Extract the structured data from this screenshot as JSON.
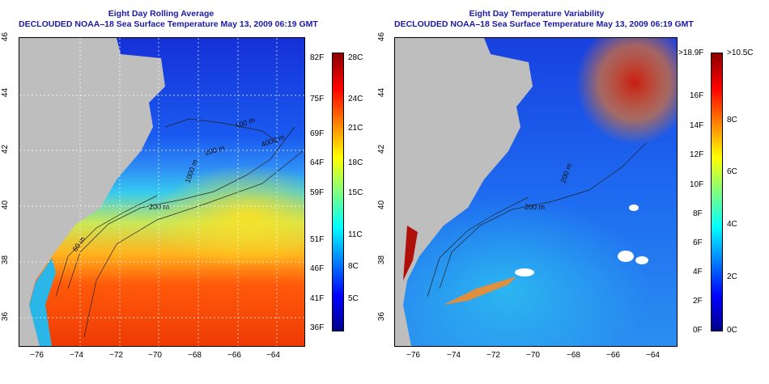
{
  "left_map": {
    "title_line1": "Eight Day Rolling Average",
    "title_line2": "DECLOUDED NOAA–18 Sea Surface Temperature May 13, 2009 06:19 GMT",
    "contour_labels": [
      "200 m",
      "60 m",
      "4000 m",
      "100 m",
      "200 m",
      "1000 m"
    ],
    "lat_ticks": [
      "46",
      "44",
      "42",
      "40",
      "38",
      "36"
    ],
    "lon_ticks": [
      "−76",
      "−74",
      "−72",
      "−70",
      "−68",
      "−66",
      "−64"
    ],
    "colorbar_f": [
      "82F",
      "75F",
      "69F",
      "64F",
      "59F",
      "51F",
      "46F",
      "41F",
      "36F"
    ],
    "colorbar_c": [
      "28C",
      "24C",
      "21C",
      "18C",
      "15C",
      "11C",
      "8C",
      "5C"
    ]
  },
  "right_map": {
    "title_line1": "Eight Day Temperature Variability",
    "title_line2": "DECLOUDED NOAA–18 Sea Surface Temperature May 13, 2009 06:19 GMT",
    "contour_labels": [
      "200 m",
      "200 m"
    ],
    "lat_ticks": [
      "46",
      "44",
      "42",
      "40",
      "38",
      "36"
    ],
    "lon_ticks": [
      "−76",
      "−74",
      "−72",
      "−70",
      "−68",
      "−66",
      "−64"
    ],
    "colorbar_f": [
      ">18.9F",
      "16F",
      "14F",
      "12F",
      "10F",
      "8F",
      "6F",
      "4F",
      "2F",
      "0F"
    ],
    "colorbar_c": [
      ">10.5C",
      "8C",
      "6C",
      "4C",
      "2C",
      "0C"
    ]
  },
  "colors": {
    "land": "#bebebe",
    "title": "#1a1aa6",
    "sst_scale": [
      "#00008b",
      "#0000ff",
      "#0080ff",
      "#00ffff",
      "#80ff80",
      "#ffff00",
      "#ff8000",
      "#ff0000",
      "#8b0000"
    ]
  }
}
